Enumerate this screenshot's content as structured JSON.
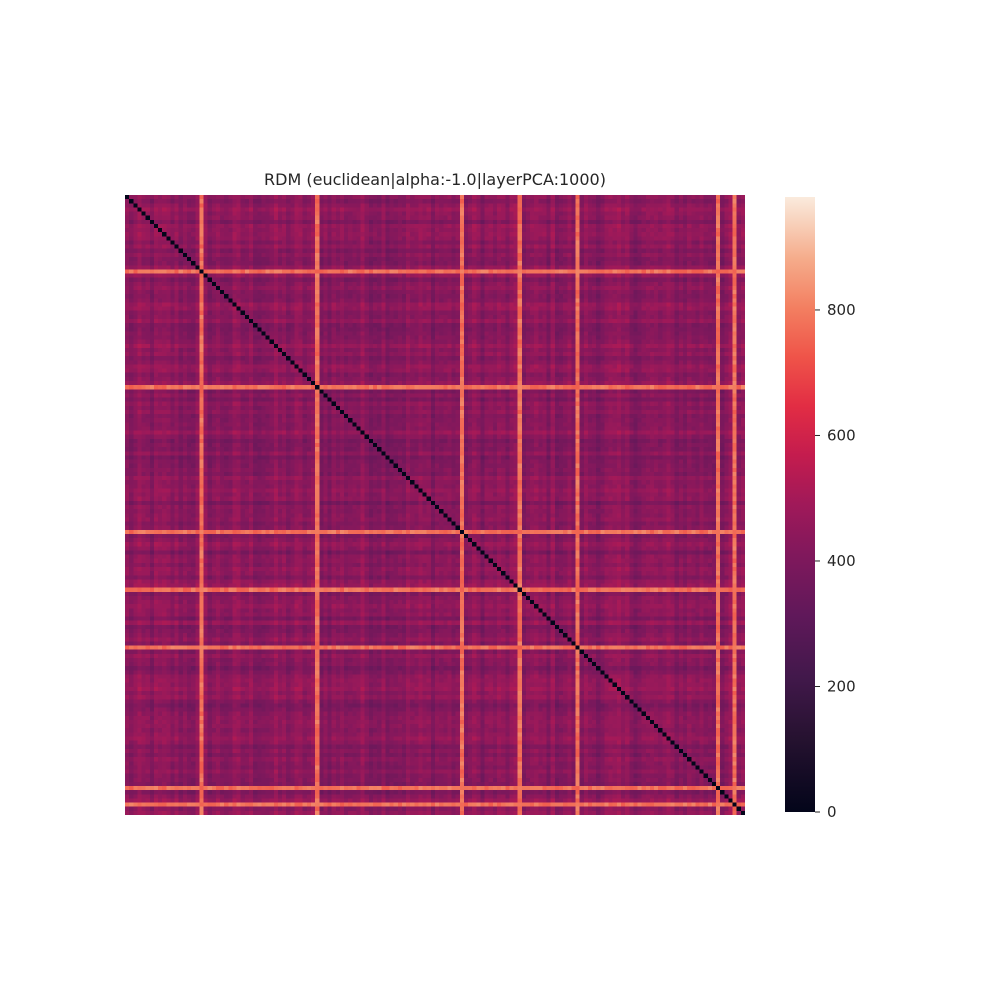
{
  "chart_data": {
    "type": "heatmap",
    "title": "RDM (euclidean|alpha:-1.0|layerPCA:1000)",
    "xlabel": "",
    "ylabel": "",
    "matrix_size": 150,
    "diagonal_value": 0,
    "typical_offdiagonal_range": [
      330,
      530
    ],
    "typical_offdiagonal_value": 430,
    "bright_rows_cols": [
      18,
      46,
      81,
      95,
      109,
      143,
      147
    ],
    "bright_value": 780,
    "colorbar": {
      "range": [
        0,
        980
      ],
      "ticks": [
        0,
        200,
        400,
        600,
        800
      ],
      "tick_labels": [
        "0",
        "200",
        "400",
        "600",
        "800"
      ],
      "colormap": "rocket"
    }
  }
}
